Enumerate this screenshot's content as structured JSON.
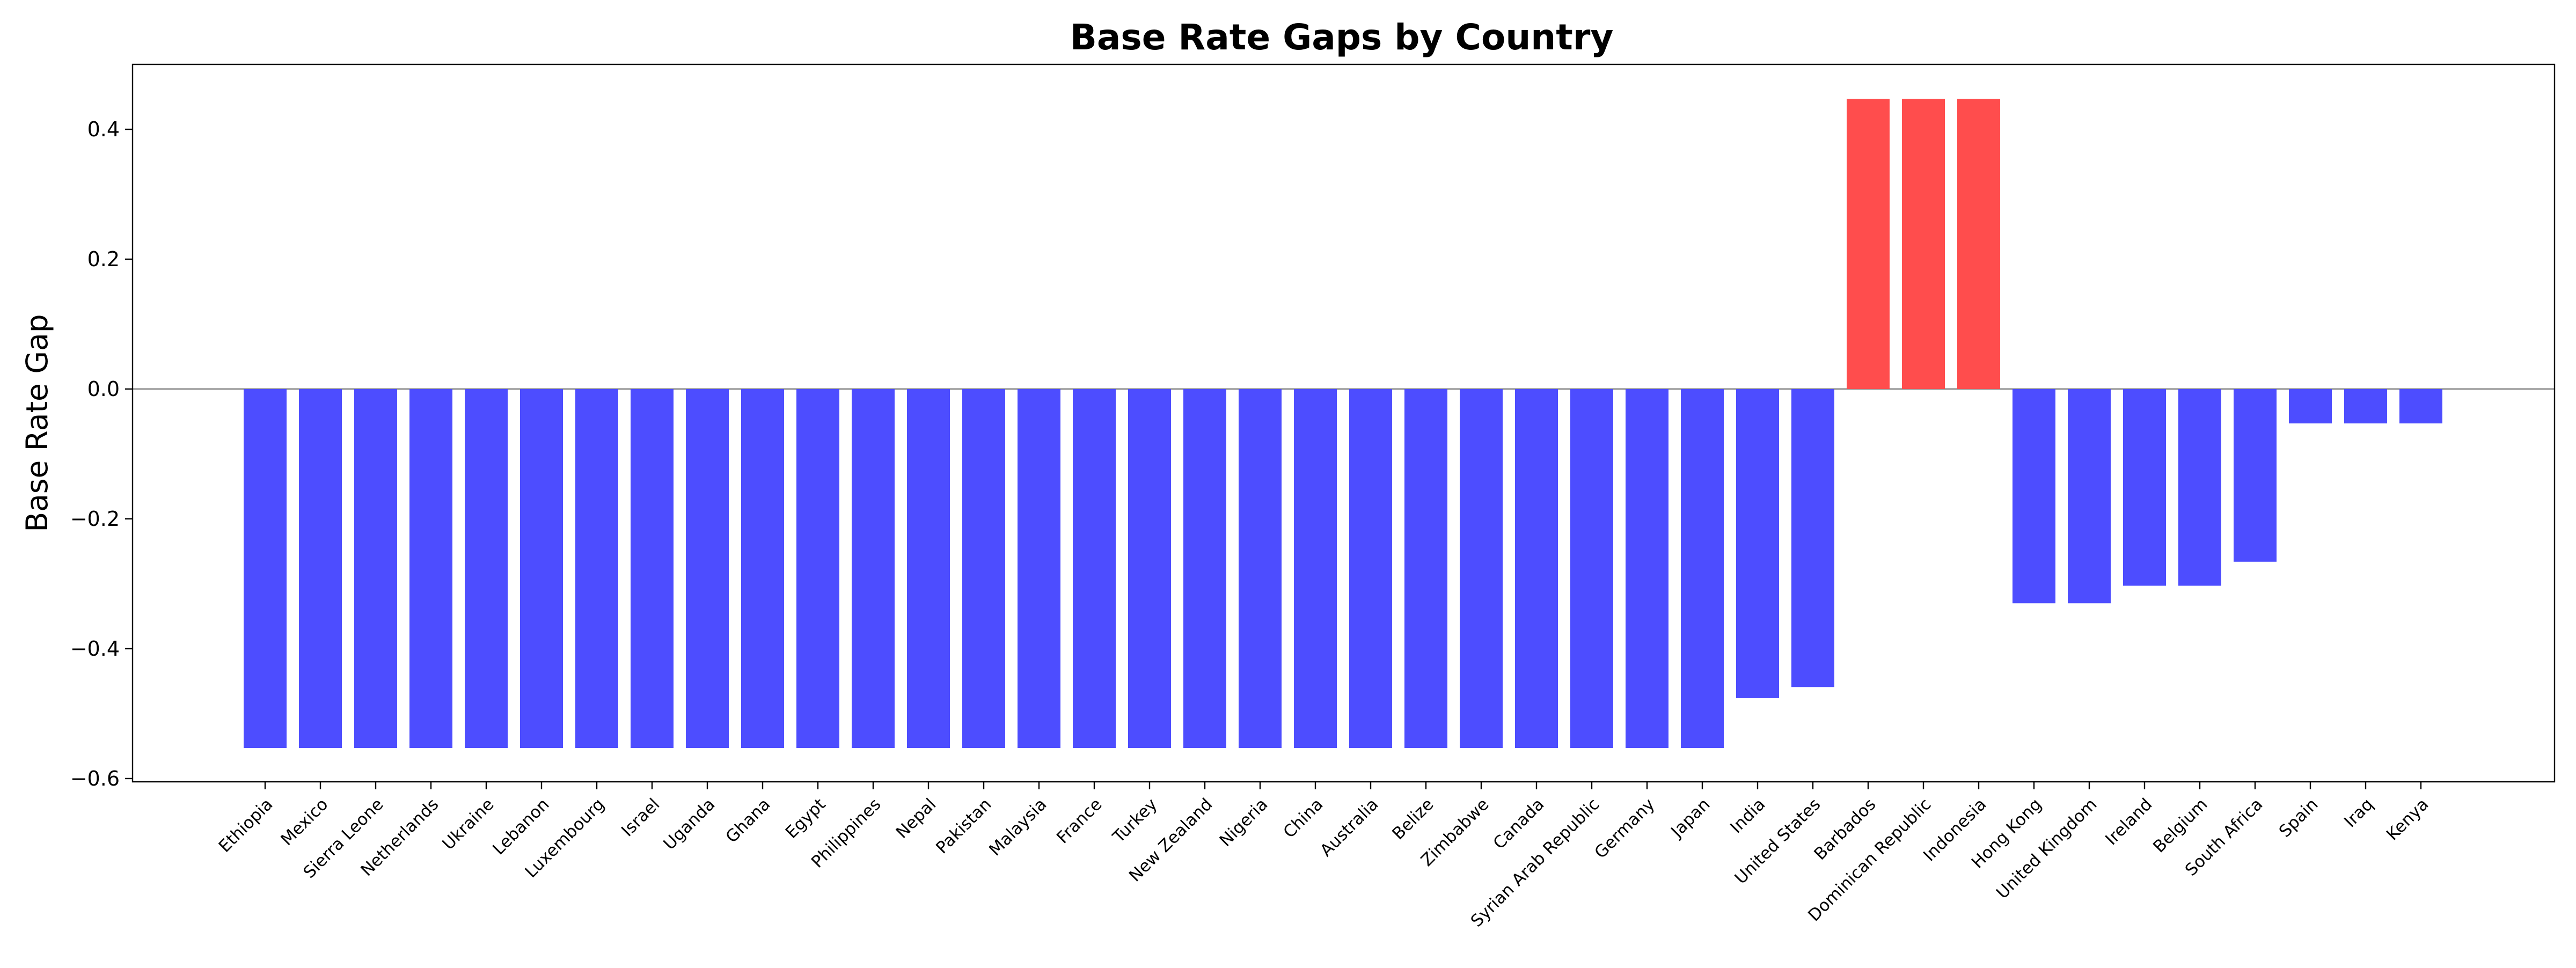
{
  "chart_data": {
    "type": "bar",
    "title": "Base Rate Gaps by Country",
    "xlabel": "",
    "ylabel": "Base Rate Gap",
    "categories": [
      "Ethiopia",
      "Mexico",
      "Sierra Leone",
      "Netherlands",
      "Ukraine",
      "Lebanon",
      "Luxembourg",
      "Israel",
      "Uganda",
      "Ghana",
      "Egypt",
      "Philippines",
      "Nepal",
      "Pakistan",
      "Malaysia",
      "France",
      "Turkey",
      "New Zealand",
      "Nigeria",
      "China",
      "Australia",
      "Belize",
      "Zimbabwe",
      "Canada",
      "Syrian Arab Republic",
      "Germany",
      "Japan",
      "India",
      "United States",
      "Barbados",
      "Dominican Republic",
      "Indonesia",
      "Hong Kong",
      "United Kingdom",
      "Ireland",
      "Belgium",
      "South Africa",
      "Spain",
      "Iraq",
      "Kenya"
    ],
    "values": [
      -0.553,
      -0.553,
      -0.553,
      -0.553,
      -0.553,
      -0.553,
      -0.553,
      -0.553,
      -0.553,
      -0.553,
      -0.553,
      -0.553,
      -0.553,
      -0.553,
      -0.553,
      -0.553,
      -0.553,
      -0.553,
      -0.553,
      -0.553,
      -0.553,
      -0.553,
      -0.553,
      -0.553,
      -0.553,
      -0.553,
      -0.553,
      -0.476,
      -0.459,
      0.447,
      0.447,
      0.447,
      -0.33,
      -0.33,
      -0.303,
      -0.303,
      -0.266,
      -0.053,
      -0.053,
      -0.053
    ],
    "ylim": [
      -0.605,
      0.5
    ],
    "yticks": [
      -0.6,
      -0.4,
      -0.2,
      0.0,
      0.2,
      0.4
    ],
    "ytick_labels": [
      "−0.6",
      "−0.4",
      "−0.2",
      "0.0",
      "0.2",
      "0.4"
    ],
    "zero_line": true,
    "grid": false,
    "colors": {
      "negative": "#4d4dff",
      "positive": "#ff4d4d",
      "zero_line": "#aaaaaa"
    }
  }
}
